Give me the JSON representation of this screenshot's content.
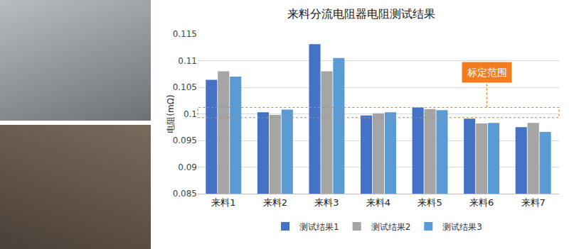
{
  "chart_data": {
    "type": "bar",
    "title": "来料分流电阻器电阻测试结果",
    "y_label": "电阻(mΩ)",
    "categories": [
      "来料1",
      "来料2",
      "来料3",
      "来料4",
      "来料5",
      "来料6",
      "来料7"
    ],
    "series": [
      {
        "name": "测试结果1",
        "color": "#4472c4",
        "values": [
          0.1064,
          0.1003,
          0.1131,
          0.0997,
          0.1012,
          0.0991,
          0.0975
        ]
      },
      {
        "name": "测试结果2",
        "color": "#a5a5a5",
        "values": [
          0.108,
          0.0998,
          0.108,
          0.1001,
          0.1009,
          0.0982,
          0.0983
        ]
      },
      {
        "name": "测试结果3",
        "color": "#5b9bd5",
        "values": [
          0.107,
          0.1008,
          0.1105,
          0.1003,
          0.1007,
          0.0983,
          0.0966
        ]
      }
    ],
    "ylim": [
      0.085,
      0.115
    ],
    "yticks": [
      0.085,
      0.09,
      0.095,
      0.1,
      0.105,
      0.11,
      0.115
    ],
    "grid": true,
    "legend": "bottom",
    "annotation": {
      "text": "标定范围",
      "color": "#f47c20",
      "calibration_range": [
        0.0993,
        0.1012
      ]
    }
  }
}
